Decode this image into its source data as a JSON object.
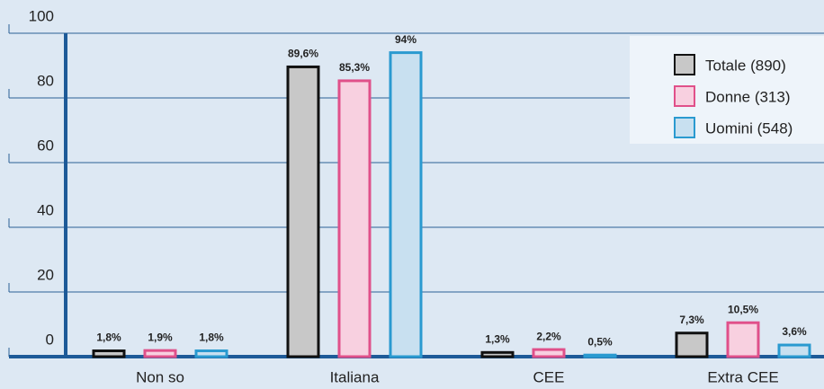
{
  "chart_data": {
    "type": "bar",
    "categories": [
      "Non so",
      "Italiana",
      "CEE",
      "Extra CEE"
    ],
    "series": [
      {
        "name": "Totale (890)",
        "color": "#c8c8c8",
        "stroke": "#111111",
        "values": [
          1.8,
          89.6,
          1.3,
          7.3
        ],
        "value_labels": [
          "1,8%",
          "89,6%",
          "1,3%",
          "7,3%"
        ]
      },
      {
        "name": "Donne (313)",
        "color": "#f8d0e0",
        "stroke": "#e0508a",
        "values": [
          1.9,
          85.3,
          2.2,
          10.5
        ],
        "value_labels": [
          "1,9%",
          "85,3%",
          "2,2%",
          "10,5%"
        ]
      },
      {
        "name": "Uomini (548)",
        "color": "#c8e0f0",
        "stroke": "#2a9ad0",
        "values": [
          1.8,
          94,
          0.5,
          3.6
        ],
        "value_labels": [
          "1,8%",
          "94%",
          "0,5%",
          "3,6%"
        ]
      }
    ],
    "ylim": [
      0,
      100
    ],
    "yticks": [
      0,
      20,
      40,
      60,
      80,
      100
    ],
    "grid": true,
    "legend": "top-right"
  }
}
